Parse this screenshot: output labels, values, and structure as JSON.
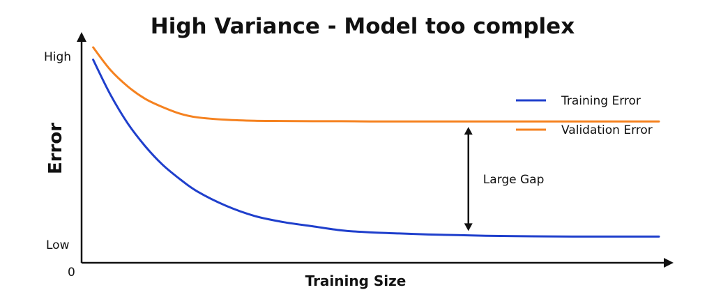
{
  "chart_data": {
    "type": "line",
    "title": "High Variance - Model too complex",
    "xlabel": "Training Size",
    "ylabel": "Error",
    "y_tick_labels": {
      "high": "High",
      "low": "Low"
    },
    "origin_label": "0",
    "xlim": [
      0,
      100
    ],
    "ylim": [
      0,
      100
    ],
    "grid": false,
    "legend_position": "right",
    "series": [
      {
        "name": "Training Error",
        "color": "#1f3fcc",
        "x": [
          2,
          5,
          8,
          11,
          14,
          17,
          20,
          25,
          30,
          35,
          40,
          45,
          50,
          55,
          60,
          65,
          70,
          75,
          80,
          85,
          90,
          95,
          100
        ],
        "y": [
          93,
          76,
          62,
          51,
          42,
          35,
          29,
          22,
          17,
          14,
          12,
          10,
          9,
          8.5,
          8,
          7.7,
          7.4,
          7.2,
          7.1,
          7,
          7,
          7,
          7
        ]
      },
      {
        "name": "Validation Error",
        "color": "#f58220",
        "x": [
          2,
          5,
          8,
          11,
          14,
          17,
          20,
          25,
          30,
          35,
          40,
          45,
          50,
          55,
          60,
          65,
          70,
          75,
          80,
          85,
          90,
          95,
          100
        ],
        "y": [
          99,
          88,
          80,
          74,
          70,
          66.8,
          65,
          63.8,
          63.3,
          63.2,
          63.1,
          63.1,
          63,
          63,
          63,
          63,
          63,
          63,
          63,
          63,
          63,
          63,
          63
        ]
      }
    ],
    "annotations": [
      {
        "text": "Large Gap",
        "x": 67,
        "y_from": 63,
        "y_to": 7
      }
    ]
  }
}
